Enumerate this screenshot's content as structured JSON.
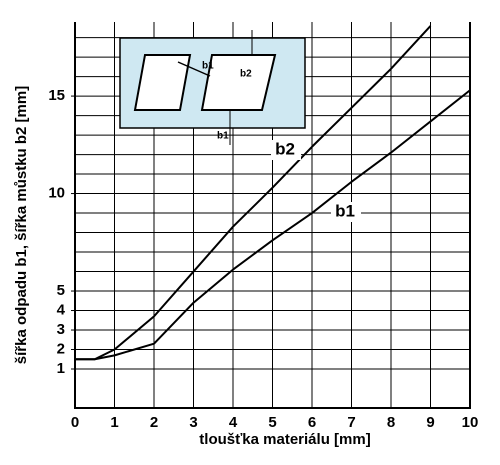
{
  "chart_data": {
    "type": "line",
    "xlabel": "tloušťka materiálu [mm]",
    "ylabel": "šířka odpadu b1, šířka můstku b2 [mm]",
    "x": [
      0,
      0.5,
      1,
      2,
      3,
      4,
      5,
      6,
      7,
      8,
      9,
      10
    ],
    "series": [
      {
        "name": "b2",
        "color": "#000000",
        "values": [
          1.5,
          1.5,
          2,
          3.7,
          6,
          8.3,
          10.3,
          12.4,
          14.4,
          16.4,
          18.6,
          null
        ]
      },
      {
        "name": "b1",
        "color": "#000000",
        "values": [
          1.5,
          1.5,
          1.7,
          2.3,
          4.4,
          6.1,
          7.6,
          9.0,
          10.6,
          12.1,
          13.7,
          15.3
        ]
      }
    ],
    "xlim": [
      0,
      10
    ],
    "xticks": [
      0,
      1,
      2,
      3,
      4,
      5,
      6,
      7,
      8,
      9,
      10
    ],
    "ylim": [
      -1,
      18.8
    ],
    "yticks": [
      1,
      2,
      3,
      4,
      5,
      10,
      15
    ],
    "ygrid": [
      1,
      2,
      3,
      4,
      5,
      6,
      7,
      8,
      9,
      10,
      11,
      12,
      13,
      14,
      15,
      16,
      17,
      18
    ],
    "grid": true
  }
}
